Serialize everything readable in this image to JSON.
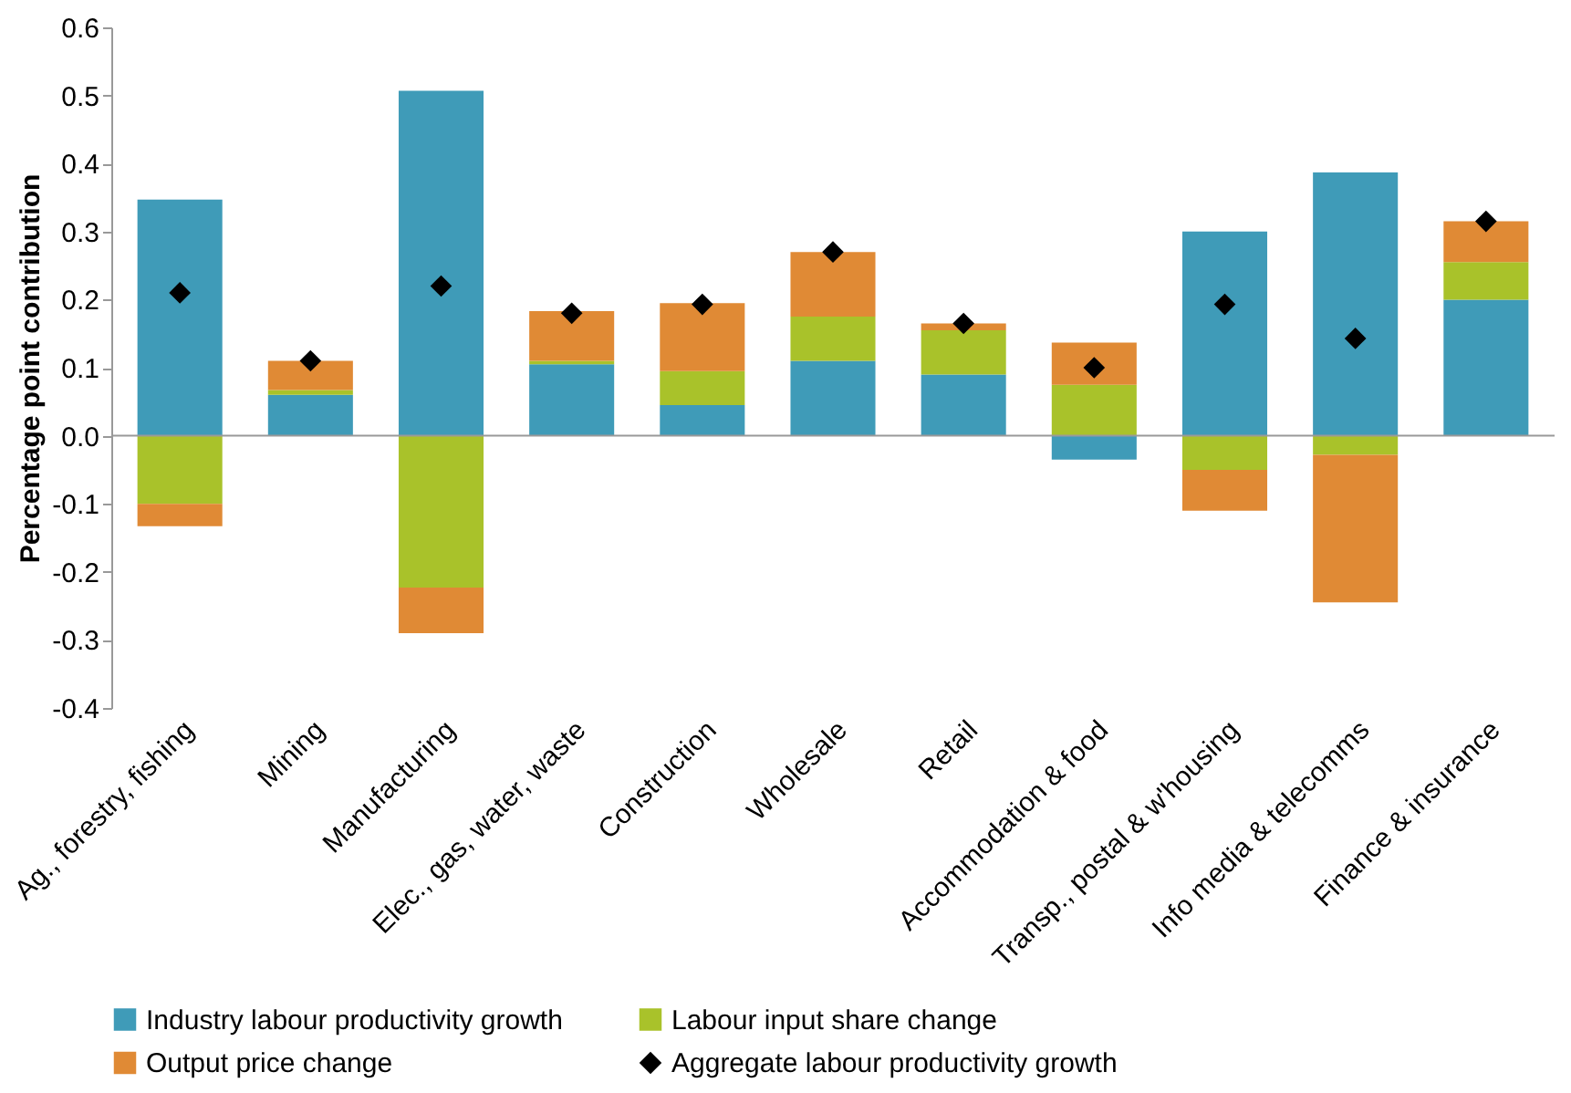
{
  "chart_data": {
    "type": "bar",
    "stacked": true,
    "ylabel": "Percentage point contribution",
    "categories": [
      "Ag., forestry, fishing",
      "Mining",
      "Manufacturing",
      "Elec., gas, water, waste",
      "Construction",
      "Wholesale",
      "Retail",
      "Accommodation & food",
      "Transp., postal & w'housing",
      "Info media & telecomms",
      "Finance & insurance"
    ],
    "series": [
      {
        "name": "Industry labour productivity growth",
        "color": "#3f9bb8",
        "values": [
          0.347,
          0.06,
          0.507,
          0.105,
          0.045,
          0.11,
          0.09,
          -0.035,
          0.3,
          0.387,
          0.2
        ]
      },
      {
        "name": "Labour input share change",
        "color": "#a9c22a",
        "values": [
          -0.1,
          0.007,
          -0.223,
          0.005,
          0.05,
          0.065,
          0.065,
          0.075,
          -0.05,
          -0.028,
          0.055
        ]
      },
      {
        "name": "Output price change",
        "color": "#e08a35",
        "values": [
          -0.033,
          0.043,
          -0.067,
          0.073,
          0.1,
          0.095,
          0.01,
          0.062,
          -0.06,
          -0.217,
          0.06
        ]
      },
      {
        "name": "Aggregate labour productivity growth",
        "color": "#000000",
        "type": "scatter",
        "marker": "diamond",
        "values": [
          0.21,
          0.11,
          0.22,
          0.18,
          0.193,
          0.27,
          0.165,
          0.1,
          0.193,
          0.143,
          0.315
        ]
      }
    ],
    "ylim": [
      -0.4,
      0.6
    ],
    "yticks": [
      -0.4,
      -0.3,
      -0.2,
      -0.1,
      {
        "value": 0,
        "label": "0.0"
      },
      0.1,
      0.2,
      0.3,
      0.4,
      0.5,
      0.6
    ],
    "ref_lines": [
      {
        "axis": "y",
        "value": 0,
        "color": "#999999"
      }
    ],
    "grid": false,
    "legend": "bottom"
  }
}
